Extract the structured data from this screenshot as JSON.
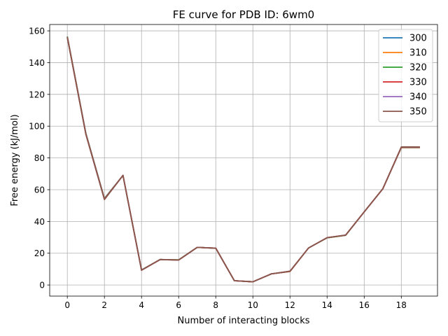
{
  "chart_data": {
    "type": "line",
    "title": "FE curve for PDB ID: 6wm0",
    "xlabel": "Number of interacting blocks",
    "ylabel": "Free energy (kJ/mol)",
    "xlim": [
      -0.95,
      19.95
    ],
    "ylim": [
      -7.0,
      164.0
    ],
    "xticks": [
      0,
      2,
      4,
      6,
      8,
      10,
      12,
      14,
      16,
      18
    ],
    "yticks": [
      0,
      20,
      40,
      60,
      80,
      100,
      120,
      140,
      160
    ],
    "grid": true,
    "legend_position": "top-right",
    "x": [
      0,
      1,
      2,
      3,
      4,
      5,
      6,
      7,
      8,
      9,
      10,
      11,
      12,
      13,
      14,
      15,
      16,
      17,
      18,
      19
    ],
    "series": [
      {
        "name": "300",
        "color": "#1f77b4",
        "values": [
          156.5,
          95.5,
          54.5,
          69.0,
          9.5,
          16.0,
          15.8,
          23.7,
          23.2,
          2.7,
          2.0,
          7.0,
          8.5,
          23.3,
          29.7,
          31.3,
          46.0,
          60.5,
          86.5,
          86.5
        ]
      },
      {
        "name": "310",
        "color": "#ff7f0e",
        "values": [
          156.3,
          95.3,
          54.3,
          69.0,
          9.4,
          16.0,
          15.8,
          23.7,
          23.2,
          2.7,
          2.0,
          7.0,
          8.5,
          23.3,
          29.7,
          31.3,
          46.0,
          60.5,
          86.5,
          86.5
        ]
      },
      {
        "name": "320",
        "color": "#2ca02c",
        "values": [
          156.2,
          95.2,
          54.2,
          69.0,
          9.4,
          16.0,
          15.8,
          23.7,
          23.2,
          2.7,
          2.0,
          7.0,
          8.6,
          23.3,
          29.7,
          31.3,
          46.0,
          60.5,
          86.6,
          86.6
        ]
      },
      {
        "name": "330",
        "color": "#d62728",
        "values": [
          156.0,
          95.0,
          54.0,
          69.0,
          9.3,
          16.0,
          15.7,
          23.7,
          23.2,
          2.7,
          2.0,
          7.0,
          8.6,
          23.3,
          29.8,
          31.4,
          46.0,
          60.5,
          86.7,
          86.7
        ]
      },
      {
        "name": "340",
        "color": "#9467bd",
        "values": [
          155.9,
          94.9,
          53.9,
          69.0,
          9.3,
          16.0,
          15.7,
          23.7,
          23.1,
          2.7,
          2.0,
          7.0,
          8.7,
          23.3,
          29.8,
          31.4,
          46.0,
          60.5,
          86.8,
          86.8
        ]
      },
      {
        "name": "350",
        "color": "#8c564b",
        "values": [
          155.8,
          94.8,
          53.8,
          69.0,
          9.3,
          16.0,
          15.7,
          23.7,
          23.1,
          2.7,
          2.0,
          7.0,
          8.7,
          23.3,
          29.8,
          31.4,
          46.0,
          60.5,
          86.9,
          86.9
        ]
      }
    ]
  }
}
